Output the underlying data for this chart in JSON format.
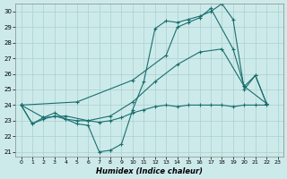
{
  "xlabel": "Humidex (Indice chaleur)",
  "background_color": "#cdeaea",
  "grid_color": "#aacfcf",
  "line_color": "#1a6e6e",
  "xlim": [
    -0.5,
    23.5
  ],
  "ylim": [
    20.7,
    30.5
  ],
  "yticks": [
    21,
    22,
    23,
    24,
    25,
    26,
    27,
    28,
    29,
    30
  ],
  "xticks": [
    0,
    1,
    2,
    3,
    4,
    5,
    6,
    7,
    8,
    9,
    10,
    11,
    12,
    13,
    14,
    15,
    16,
    17,
    18,
    19,
    20,
    21,
    22,
    23
  ],
  "series": [
    {
      "x": [
        0,
        1,
        2,
        3,
        4,
        5,
        6,
        7,
        8,
        9,
        10,
        11,
        12,
        13,
        14,
        15,
        16,
        17,
        18,
        19,
        20,
        21,
        22
      ],
      "y": [
        24,
        22.8,
        23.2,
        23.5,
        23.1,
        22.8,
        22.7,
        21.0,
        21.1,
        21.5,
        23.7,
        25.5,
        28.9,
        29.4,
        29.3,
        29.5,
        29.7,
        30.0,
        30.5,
        29.5,
        25.0,
        25.9,
        24.1
      ]
    },
    {
      "x": [
        0,
        1,
        2,
        3,
        4,
        5,
        6,
        7,
        8,
        9,
        10,
        11,
        12,
        13,
        14,
        15,
        16,
        17,
        18,
        19,
        20,
        21,
        22
      ],
      "y": [
        24,
        22.8,
        23.1,
        23.3,
        23.1,
        23.0,
        23.0,
        22.9,
        23.0,
        23.2,
        23.5,
        23.7,
        23.9,
        24.0,
        23.9,
        24.0,
        24.0,
        24.0,
        24.0,
        23.9,
        24.0,
        24.0,
        24.0
      ]
    },
    {
      "x": [
        0,
        2,
        4,
        6,
        8,
        10,
        12,
        14,
        16,
        18,
        20,
        22
      ],
      "y": [
        24,
        23.2,
        23.3,
        23.0,
        23.3,
        24.2,
        25.5,
        26.6,
        27.4,
        27.6,
        25.2,
        24.1
      ]
    },
    {
      "x": [
        0,
        5,
        10,
        13,
        14,
        15,
        16,
        17,
        19,
        20,
        21,
        22
      ],
      "y": [
        24,
        24.2,
        25.6,
        27.2,
        29.0,
        29.3,
        29.6,
        30.2,
        27.6,
        25.2,
        25.9,
        24.1
      ]
    }
  ]
}
